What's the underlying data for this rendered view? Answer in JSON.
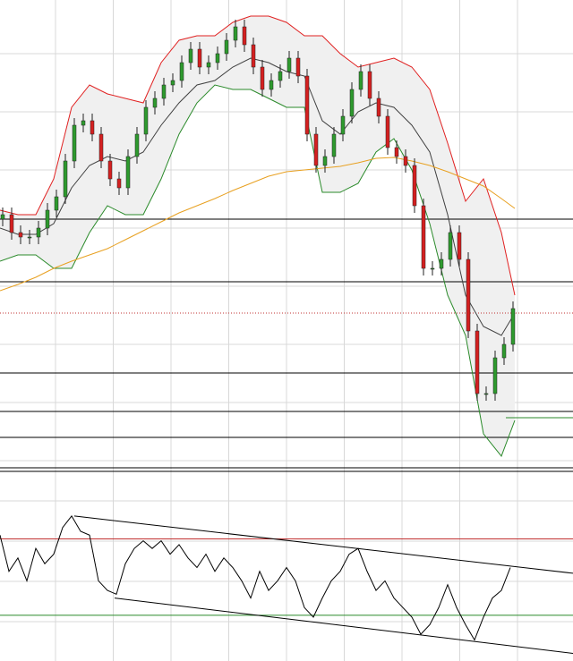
{
  "chart_data": [
    {
      "type": "candlestick",
      "xlim": [
        0,
        640
      ],
      "ylim": [
        0,
        525
      ],
      "x": [
        3,
        13,
        23,
        33,
        43,
        53,
        63,
        73,
        83,
        93,
        103,
        113,
        123,
        133,
        143,
        153,
        163,
        173,
        183,
        193,
        203,
        213,
        223,
        233,
        243,
        253,
        263,
        273,
        283,
        293,
        303,
        313,
        323,
        333,
        343,
        353,
        363,
        373,
        383,
        393,
        403,
        413,
        423,
        433,
        443,
        453,
        463,
        473,
        483,
        493,
        503,
        513,
        523,
        533,
        543,
        553,
        563,
        573
      ],
      "open": [
        280,
        285,
        265,
        260,
        260,
        270,
        290,
        305,
        345,
        385,
        390,
        375,
        345,
        325,
        315,
        350,
        375,
        405,
        415,
        430,
        435,
        455,
        470,
        450,
        455,
        465,
        480,
        495,
        475,
        450,
        425,
        435,
        445,
        460,
        440,
        375,
        340,
        350,
        375,
        395,
        425,
        445,
        415,
        395,
        360,
        350,
        340,
        295,
        225,
        225,
        235,
        265,
        235,
        155,
        85,
        85,
        125,
        140
      ],
      "high": [
        293,
        293,
        273,
        268,
        278,
        298,
        313,
        353,
        393,
        398,
        398,
        383,
        353,
        333,
        358,
        383,
        413,
        423,
        438,
        443,
        463,
        478,
        478,
        463,
        473,
        488,
        503,
        503,
        483,
        458,
        443,
        453,
        468,
        468,
        448,
        383,
        358,
        383,
        403,
        433,
        453,
        453,
        423,
        403,
        368,
        358,
        348,
        303,
        233,
        243,
        273,
        273,
        243,
        163,
        93,
        133,
        148,
        188
      ],
      "low": [
        272,
        257,
        252,
        252,
        252,
        262,
        282,
        297,
        337,
        377,
        367,
        337,
        317,
        307,
        307,
        342,
        367,
        397,
        407,
        422,
        427,
        447,
        442,
        442,
        447,
        457,
        472,
        467,
        442,
        417,
        417,
        427,
        437,
        432,
        367,
        332,
        332,
        342,
        367,
        387,
        417,
        407,
        387,
        352,
        342,
        332,
        287,
        217,
        217,
        217,
        227,
        227,
        147,
        77,
        77,
        77,
        117,
        132
      ],
      "close": [
        285,
        265,
        260,
        260,
        270,
        290,
        305,
        345,
        385,
        390,
        375,
        345,
        325,
        315,
        350,
        375,
        405,
        415,
        430,
        435,
        455,
        470,
        450,
        455,
        465,
        480,
        495,
        475,
        450,
        425,
        435,
        445,
        460,
        440,
        375,
        340,
        350,
        375,
        395,
        425,
        445,
        415,
        395,
        360,
        350,
        340,
        295,
        225,
        225,
        235,
        265,
        235,
        155,
        85,
        85,
        125,
        140,
        180
      ],
      "up_color": "#2e9a2e",
      "down_color": "#d42020",
      "band_color": "#f0f0f0",
      "overlays": [
        {
          "color": "#e02020",
          "x": [
            0,
            20,
            40,
            60,
            80,
            100,
            120,
            140,
            160,
            180,
            200,
            220,
            240,
            260,
            280,
            300,
            320,
            340,
            360,
            380,
            400,
            420,
            440,
            460,
            480,
            500,
            520,
            540,
            560,
            575
          ],
          "values": [
            290,
            285,
            285,
            325,
            405,
            430,
            420,
            415,
            410,
            455,
            480,
            485,
            485,
            500,
            507,
            507,
            500,
            485,
            485,
            465,
            450,
            455,
            460,
            450,
            425,
            365,
            300,
            325,
            265,
            195
          ]
        },
        {
          "color": "#2a8a2a",
          "x": [
            0,
            20,
            40,
            60,
            80,
            100,
            120,
            140,
            160,
            180,
            200,
            220,
            240,
            260,
            280,
            300,
            320,
            340,
            360,
            380,
            400,
            420,
            440,
            460,
            480,
            500,
            520,
            540,
            560,
            575
          ],
          "values": [
            233,
            240,
            240,
            225,
            225,
            265,
            295,
            285,
            285,
            325,
            375,
            410,
            430,
            425,
            425,
            415,
            405,
            405,
            310,
            310,
            320,
            355,
            370,
            335,
            275,
            195,
            150,
            40,
            15,
            55
          ]
        },
        {
          "color": "#404040",
          "x": [
            0,
            20,
            40,
            60,
            80,
            100,
            120,
            140,
            160,
            180,
            200,
            220,
            240,
            260,
            280,
            300,
            320,
            340,
            360,
            380,
            400,
            420,
            440,
            460,
            480,
            500,
            520,
            540,
            560,
            575
          ],
          "values": [
            270,
            263,
            263,
            275,
            315,
            340,
            350,
            345,
            355,
            385,
            410,
            430,
            435,
            450,
            460,
            455,
            445,
            440,
            390,
            375,
            400,
            410,
            405,
            385,
            355,
            285,
            195,
            160,
            150,
            175
          ]
        },
        {
          "color": "#e8a020",
          "x": [
            0,
            20,
            40,
            60,
            80,
            100,
            120,
            140,
            160,
            180,
            200,
            220,
            240,
            260,
            280,
            300,
            320,
            340,
            360,
            380,
            400,
            420,
            440,
            460,
            480,
            500,
            520,
            540,
            560,
            575
          ],
          "values": [
            200,
            207,
            215,
            225,
            233,
            240,
            247,
            257,
            267,
            277,
            287,
            295,
            303,
            312,
            320,
            328,
            333,
            335,
            337,
            339,
            343,
            348,
            349,
            345,
            340,
            333,
            325,
            317,
            303,
            292
          ]
        }
      ],
      "levels": [
        {
          "value": 280,
          "color": "#000000",
          "from": 0
        },
        {
          "value": 210,
          "color": "#000000",
          "from": 0
        },
        {
          "value": 175,
          "color": "#c03030",
          "from": 0
        },
        {
          "value": 108,
          "color": "#000000",
          "from": 0
        },
        {
          "value": 65,
          "color": "#000000",
          "from": 0
        },
        {
          "value": 58,
          "color": "#2a8a2a",
          "from": 565
        },
        {
          "value": 36,
          "color": "#000000",
          "from": 0
        }
      ]
    },
    {
      "type": "line",
      "xlim": [
        0,
        640
      ],
      "ylim": [
        6,
        104
      ],
      "color": "#000000",
      "x": [
        0,
        10,
        20,
        30,
        40,
        50,
        60,
        70,
        80,
        90,
        100,
        110,
        120,
        130,
        140,
        150,
        160,
        170,
        180,
        190,
        200,
        210,
        220,
        230,
        240,
        250,
        260,
        270,
        280,
        290,
        300,
        310,
        320,
        330,
        340,
        350,
        360,
        370,
        380,
        390,
        400,
        410,
        420,
        430,
        440,
        450,
        460,
        470,
        480,
        490,
        500,
        510,
        520,
        530,
        540,
        550,
        560,
        570
      ],
      "values": [
        72,
        53,
        60,
        48,
        65,
        57,
        62,
        76,
        82,
        74,
        72,
        48,
        43,
        41,
        57,
        65,
        69,
        65,
        69,
        62,
        67,
        60,
        55,
        62,
        53,
        60,
        55,
        48,
        39,
        53,
        43,
        48,
        55,
        48,
        34,
        29,
        39,
        48,
        53,
        62,
        65,
        53,
        43,
        48,
        39,
        34,
        29,
        20,
        25,
        34,
        46,
        34,
        25,
        17,
        29,
        39,
        43,
        55
      ],
      "levels": [
        {
          "value": 70,
          "color": "#c03030"
        },
        {
          "value": 30,
          "color": "#2a8a2a"
        }
      ],
      "trendlines": [
        {
          "x": [
            83,
            640
          ],
          "values": [
            82,
            52
          ]
        },
        {
          "x": [
            128,
            640
          ],
          "values": [
            39,
            10
          ]
        }
      ]
    }
  ]
}
